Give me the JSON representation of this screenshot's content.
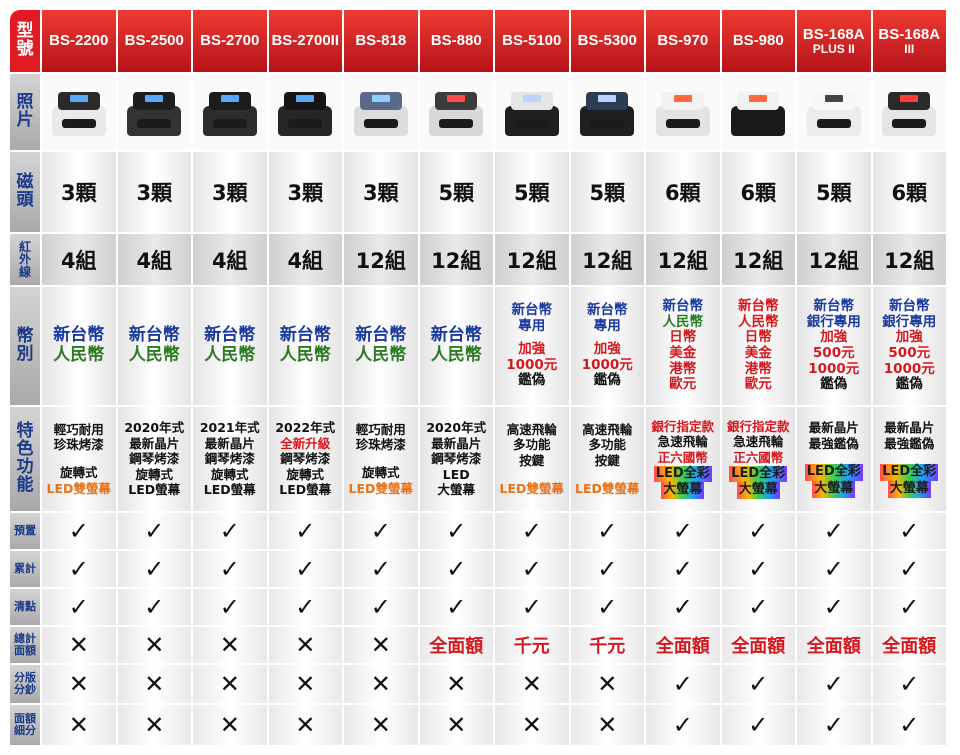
{
  "corner_label": [
    "型",
    "號"
  ],
  "models": [
    {
      "name": "BS-2200",
      "sub": ""
    },
    {
      "name": "BS-2500",
      "sub": ""
    },
    {
      "name": "BS-2700",
      "sub": ""
    },
    {
      "name": "BS-2700II",
      "sub": ""
    },
    {
      "name": "BS-818",
      "sub": ""
    },
    {
      "name": "BS-880",
      "sub": ""
    },
    {
      "name": "BS-5100",
      "sub": ""
    },
    {
      "name": "BS-5300",
      "sub": ""
    },
    {
      "name": "BS-970",
      "sub": ""
    },
    {
      "name": "BS-980",
      "sub": ""
    },
    {
      "name": "BS-168A",
      "sub": "PLUS II"
    },
    {
      "name": "BS-168A",
      "sub": "III"
    }
  ],
  "row_labels": {
    "photo": [
      "照",
      "片"
    ],
    "heads": [
      "磁",
      "頭"
    ],
    "infrared": [
      "紅",
      "外",
      "線"
    ],
    "currency": [
      "幣",
      "別"
    ],
    "features": [
      "特",
      "色",
      "功",
      "能"
    ],
    "preset": [
      "預置"
    ],
    "accumulate": [
      "累計"
    ],
    "clear": [
      "清點"
    ],
    "total_amount": [
      "總計",
      "面額"
    ],
    "sort": [
      "分版",
      "分鈔"
    ],
    "denomination": [
      "面額",
      "細分"
    ]
  },
  "heads": [
    "3顆",
    "3顆",
    "3顆",
    "3顆",
    "3顆",
    "5顆",
    "5顆",
    "5顆",
    "6顆",
    "6顆",
    "5顆",
    "6顆"
  ],
  "infrared": [
    "4組",
    "4組",
    "4組",
    "4組",
    "12組",
    "12組",
    "12組",
    "12組",
    "12組",
    "12組",
    "12組",
    "12組"
  ],
  "currency": [
    [
      {
        "t": "新台幣",
        "c": "blue"
      },
      {
        "t": "人民幣",
        "c": "green"
      }
    ],
    [
      {
        "t": "新台幣",
        "c": "blue"
      },
      {
        "t": "人民幣",
        "c": "green"
      }
    ],
    [
      {
        "t": "新台幣",
        "c": "blue"
      },
      {
        "t": "人民幣",
        "c": "green"
      }
    ],
    [
      {
        "t": "新台幣",
        "c": "blue"
      },
      {
        "t": "人民幣",
        "c": "green"
      }
    ],
    [
      {
        "t": "新台幣",
        "c": "blue"
      },
      {
        "t": "人民幣",
        "c": "green"
      }
    ],
    [
      {
        "t": "新台幣",
        "c": "blue"
      },
      {
        "t": "人民幣",
        "c": "green"
      }
    ],
    [
      {
        "t": "新台幣",
        "c": "blue"
      },
      {
        "t": "專用",
        "c": "blue"
      },
      {
        "t": "",
        "c": "dark"
      },
      {
        "t": "加強",
        "c": "red"
      },
      {
        "t": "1000元",
        "c": "red"
      },
      {
        "t": "鑑偽",
        "c": "dark"
      }
    ],
    [
      {
        "t": "新台幣",
        "c": "blue"
      },
      {
        "t": "專用",
        "c": "blue"
      },
      {
        "t": "",
        "c": "dark"
      },
      {
        "t": "加強",
        "c": "red"
      },
      {
        "t": "1000元",
        "c": "red"
      },
      {
        "t": "鑑偽",
        "c": "dark"
      }
    ],
    [
      {
        "t": "新台幣",
        "c": "blue"
      },
      {
        "t": "人民幣",
        "c": "green"
      },
      {
        "t": "日幣",
        "c": "red"
      },
      {
        "t": "美金",
        "c": "red"
      },
      {
        "t": "港幣",
        "c": "red"
      },
      {
        "t": "歐元",
        "c": "red"
      }
    ],
    [
      {
        "t": "新台幣",
        "c": "red"
      },
      {
        "t": "人民幣",
        "c": "red"
      },
      {
        "t": "日幣",
        "c": "red"
      },
      {
        "t": "美金",
        "c": "red"
      },
      {
        "t": "港幣",
        "c": "red"
      },
      {
        "t": "歐元",
        "c": "red"
      }
    ],
    [
      {
        "t": "新台幣",
        "c": "blue"
      },
      {
        "t": "銀行專用",
        "c": "blue"
      },
      {
        "t": "加強",
        "c": "red"
      },
      {
        "t": "500元",
        "c": "red"
      },
      {
        "t": "1000元",
        "c": "red"
      },
      {
        "t": "鑑偽",
        "c": "dark"
      }
    ],
    [
      {
        "t": "新台幣",
        "c": "blue"
      },
      {
        "t": "銀行專用",
        "c": "blue"
      },
      {
        "t": "加強",
        "c": "red"
      },
      {
        "t": "500元",
        "c": "red"
      },
      {
        "t": "1000元",
        "c": "red"
      },
      {
        "t": "鑑偽",
        "c": "dark"
      }
    ]
  ],
  "features": [
    [
      {
        "t": "輕巧耐用",
        "c": "dark"
      },
      {
        "t": "珍珠烤漆",
        "c": "dark"
      },
      {
        "t": "",
        "c": "dark"
      },
      {
        "t": "旋轉式",
        "c": "dark"
      },
      {
        "t": "LED雙螢幕",
        "c": "orange"
      }
    ],
    [
      {
        "t": "2020年式",
        "c": "dark"
      },
      {
        "t": "最新晶片",
        "c": "dark"
      },
      {
        "t": "鋼琴烤漆",
        "c": "dark"
      },
      {
        "t": "旋轉式",
        "c": "dark"
      },
      {
        "t": "LED螢幕",
        "c": "dark"
      }
    ],
    [
      {
        "t": "2021年式",
        "c": "dark"
      },
      {
        "t": "最新晶片",
        "c": "dark"
      },
      {
        "t": "鋼琴烤漆",
        "c": "dark"
      },
      {
        "t": "旋轉式",
        "c": "dark"
      },
      {
        "t": "LED螢幕",
        "c": "dark"
      }
    ],
    [
      {
        "t": "2022年式",
        "c": "dark"
      },
      {
        "t": "全新升級",
        "c": "red"
      },
      {
        "t": "鋼琴烤漆",
        "c": "dark"
      },
      {
        "t": "旋轉式",
        "c": "dark"
      },
      {
        "t": "LED螢幕",
        "c": "dark"
      }
    ],
    [
      {
        "t": "輕巧耐用",
        "c": "dark"
      },
      {
        "t": "珍珠烤漆",
        "c": "dark"
      },
      {
        "t": "",
        "c": "dark"
      },
      {
        "t": "旋轉式",
        "c": "dark"
      },
      {
        "t": "LED雙螢幕",
        "c": "orange"
      }
    ],
    [
      {
        "t": "2020年式",
        "c": "dark"
      },
      {
        "t": "最新晶片",
        "c": "dark"
      },
      {
        "t": "鋼琴烤漆",
        "c": "dark"
      },
      {
        "t": "LED",
        "c": "dark"
      },
      {
        "t": "大螢幕",
        "c": "dark"
      }
    ],
    [
      {
        "t": "高速飛輪",
        "c": "dark"
      },
      {
        "t": "多功能",
        "c": "dark"
      },
      {
        "t": "按鍵",
        "c": "dark"
      },
      {
        "t": "",
        "c": "dark"
      },
      {
        "t": "LED雙螢幕",
        "c": "orange"
      }
    ],
    [
      {
        "t": "高速飛輪",
        "c": "dark"
      },
      {
        "t": "多功能",
        "c": "dark"
      },
      {
        "t": "按鍵",
        "c": "dark"
      },
      {
        "t": "",
        "c": "dark"
      },
      {
        "t": "LED雙螢幕",
        "c": "orange"
      }
    ],
    [
      {
        "t": "銀行指定款",
        "c": "red"
      },
      {
        "t": "急速飛輪",
        "c": "dark"
      },
      {
        "t": "正六國幣",
        "c": "red"
      },
      {
        "t": "LED全彩",
        "c": "rainbow"
      },
      {
        "t": "大螢幕",
        "c": "rainbow"
      }
    ],
    [
      {
        "t": "銀行指定款",
        "c": "red"
      },
      {
        "t": "急速飛輪",
        "c": "dark"
      },
      {
        "t": "正六國幣",
        "c": "red"
      },
      {
        "t": "LED全彩",
        "c": "rainbow"
      },
      {
        "t": "大螢幕",
        "c": "rainbow"
      }
    ],
    [
      {
        "t": "最新晶片",
        "c": "dark"
      },
      {
        "t": "最強鑑偽",
        "c": "dark"
      },
      {
        "t": "",
        "c": "dark"
      },
      {
        "t": "LED全彩",
        "c": "rainbow"
      },
      {
        "t": "大螢幕",
        "c": "rainbow"
      }
    ],
    [
      {
        "t": "最新晶片",
        "c": "dark"
      },
      {
        "t": "最強鑑偽",
        "c": "dark"
      },
      {
        "t": "",
        "c": "dark"
      },
      {
        "t": "LED全彩",
        "c": "rainbow"
      },
      {
        "t": "大螢幕",
        "c": "rainbow"
      }
    ]
  ],
  "check_rows": [
    {
      "key": "preset",
      "values": [
        "✓",
        "✓",
        "✓",
        "✓",
        "✓",
        "✓",
        "✓",
        "✓",
        "✓",
        "✓",
        "✓",
        "✓"
      ]
    },
    {
      "key": "accumulate",
      "values": [
        "✓",
        "✓",
        "✓",
        "✓",
        "✓",
        "✓",
        "✓",
        "✓",
        "✓",
        "✓",
        "✓",
        "✓"
      ]
    },
    {
      "key": "clear",
      "values": [
        "✓",
        "✓",
        "✓",
        "✓",
        "✓",
        "✓",
        "✓",
        "✓",
        "✓",
        "✓",
        "✓",
        "✓"
      ]
    },
    {
      "key": "total_amount",
      "values": [
        "✕",
        "✕",
        "✕",
        "✕",
        "✕",
        "全面額",
        "千元",
        "千元",
        "全面額",
        "全面額",
        "全面額",
        "全面額"
      ]
    },
    {
      "key": "sort",
      "values": [
        "✕",
        "✕",
        "✕",
        "✕",
        "✕",
        "✕",
        "✕",
        "✕",
        "✓",
        "✓",
        "✓",
        "✓"
      ]
    },
    {
      "key": "denomination",
      "values": [
        "✕",
        "✕",
        "✕",
        "✕",
        "✕",
        "✕",
        "✕",
        "✕",
        "✓",
        "✓",
        "✓",
        "✓"
      ]
    }
  ],
  "machine_styles": [
    {
      "body": "#e9e9e9",
      "top": "#2a2a2a",
      "screen": "#5aa7ff"
    },
    {
      "body": "#333333",
      "top": "#1d1d1d",
      "screen": "#5aa7ff"
    },
    {
      "body": "#2d2d2d",
      "top": "#1c1c1c",
      "screen": "#5aa7ff"
    },
    {
      "body": "#262626",
      "top": "#151515",
      "screen": "#5aa7ff"
    },
    {
      "body": "#dcdcdc",
      "top": "#5b6a8a",
      "screen": "#8fd0ff"
    },
    {
      "body": "#d8d8d8",
      "top": "#3c3c3c",
      "screen": "#ff4b4b"
    },
    {
      "body": "#1f1f1f",
      "top": "#e5e5e5",
      "screen": "#b9d4ff"
    },
    {
      "body": "#1f1f1f",
      "top": "#2e3b55",
      "screen": "#b9d4ff"
    },
    {
      "body": "#e3e3e3",
      "top": "#f2f2f2",
      "screen": "#ff6a3c"
    },
    {
      "body": "#1a1a1a",
      "top": "#f1f1f1",
      "screen": "#ff6a3c"
    },
    {
      "body": "#ececec",
      "top": "#f7f7f7",
      "screen": "#444444"
    },
    {
      "body": "#e5e5e5",
      "top": "#2a2a2a",
      "screen": "#ff3b3b"
    }
  ]
}
